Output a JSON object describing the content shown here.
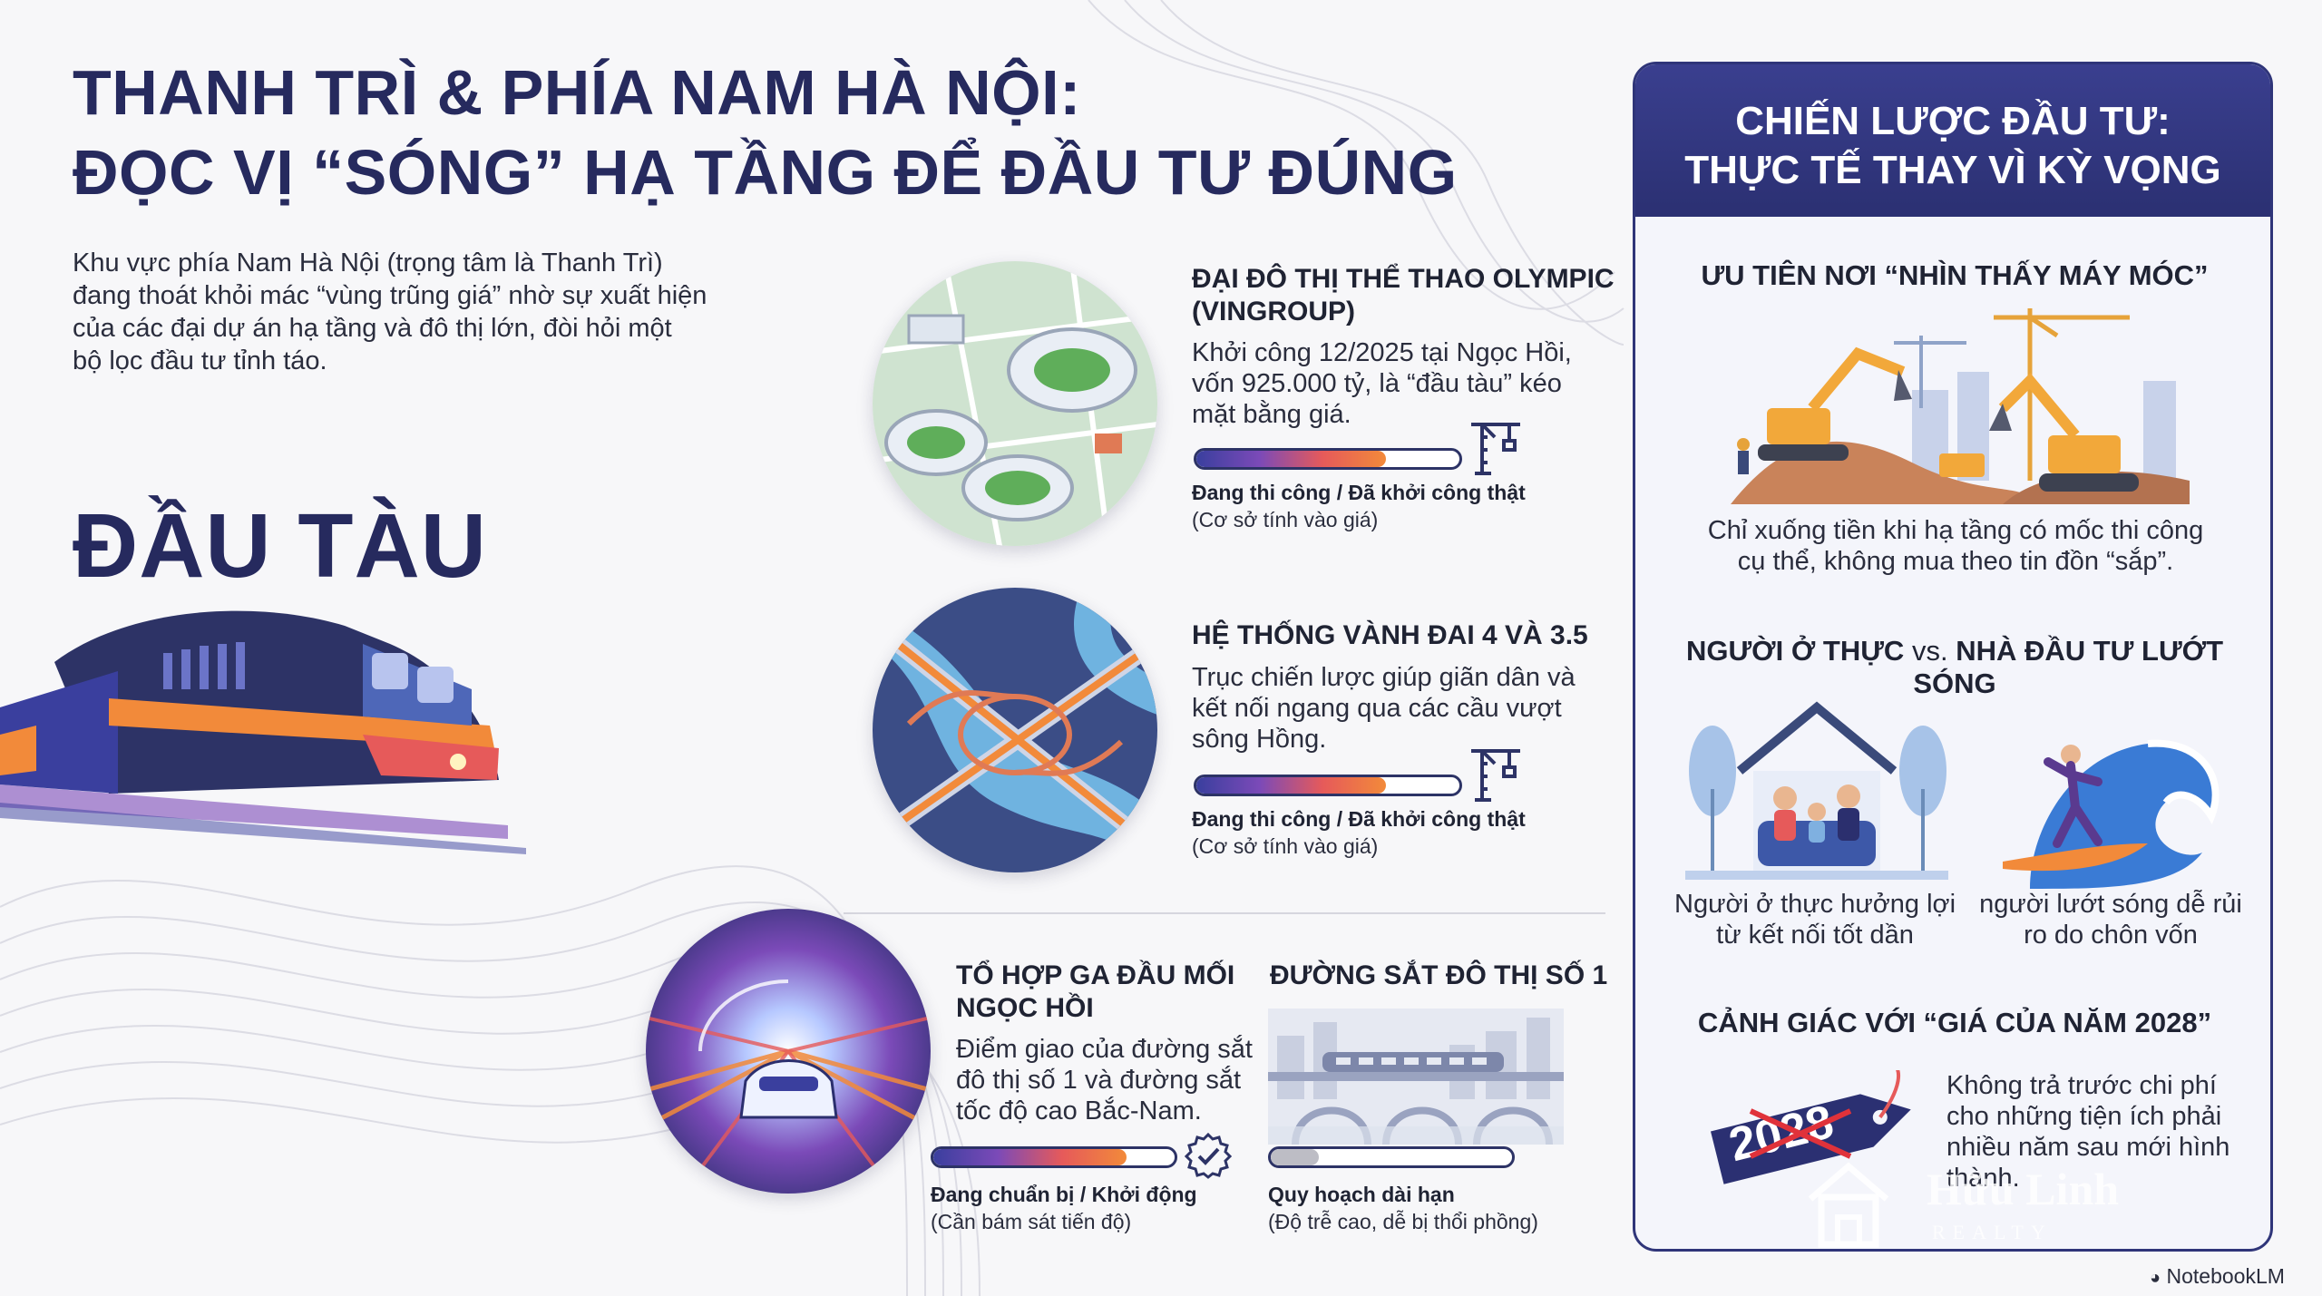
{
  "header": {
    "title_line1": "THANH TRÌ & PHÍA NAM HÀ NỘI:",
    "title_line2": "ĐỌC VỊ “SÓNG” HẠ TẦNG ĐỂ ĐẦU TƯ ĐÚNG"
  },
  "intro": "Khu vực phía Nam Hà Nội (trọng tâm là Thanh Trì) đang thoát khỏi mác “vùng trũng giá” nhờ sự xuất hiện của các đại dự án hạ tầng và đô thị lớn, đòi hỏi một bộ lọc đầu tư tỉnh táo.",
  "dau_tau_label": "ĐẦU TÀU",
  "projects": [
    {
      "title": "ĐẠI ĐÔ THỊ THỂ THAO OLYMPIC (VINGROUP)",
      "desc": "Khởi công 12/2025 tại Ngọc Hồi, vốn 925.000 tỷ, là “đầu tàu” kéo mặt bằng giá.",
      "progress": 0.72,
      "status": "Đang thi công / Đã khởi công thật",
      "status_note": "(Cơ sở tính vào giá)",
      "icon": "crane-icon"
    },
    {
      "title": "HỆ THỐNG VÀNH ĐAI 4 VÀ 3.5",
      "desc": "Trục chiến lược giúp giãn dân và kết nối ngang qua các cầu vượt sông Hồng.",
      "progress": 0.72,
      "status": "Đang thi công / Đã khởi công thật",
      "status_note": "(Cơ sở tính vào giá)",
      "icon": "crane-icon"
    },
    {
      "title": "TỔ HỢP GA ĐẦU MỐI NGỌC HỒI",
      "desc": "Điểm giao của đường sắt đô thị số 1 và đường sắt tốc độ cao Bắc-Nam.",
      "progress": 0.8,
      "status": "Đang chuẩn bị / Khởi động",
      "status_note": "(Cần bám sát tiến độ)",
      "icon": "checkmark-badge-icon"
    },
    {
      "title": "ĐƯỜNG SẮT ĐÔ THỊ SỐ 1",
      "desc": "",
      "progress": 0.2,
      "status": "Quy hoạch dài hạn",
      "status_note": "(Độ trễ cao, dễ bị thổi phồng)",
      "icon": ""
    }
  ],
  "panel": {
    "title_line1": "CHIẾN LƯỢC ĐẦU TƯ:",
    "title_line2": "THỰC TẾ THAY VÌ KỲ VỌNG",
    "s1_title": "ƯU TIÊN NƠI “NHÌN THẤY MÁY MÓC”",
    "s1_text": "Chỉ xuống tiền khi hạ tầng có mốc thi công cụ thể, không mua theo tin đồn “sắp”.",
    "s2_title_a": "NGƯỜI Ở THỰC",
    "s2_title_vs": "vs.",
    "s2_title_b": "NHÀ ĐẦU TƯ LƯỚT SÓNG",
    "s2_left": "Người ở thực hưởng lợi từ kết nối tốt dần",
    "s2_right": "người lướt sóng dễ rủi ro do chôn vốn",
    "s3_title": "CẢNH GIÁC VỚI “GIÁ CỦA NĂM 2028”",
    "s3_text": "Không trả trước chi phí cho những tiện ích phải nhiều năm sau mới hình thành.",
    "tag_year": "2028"
  },
  "watermark": {
    "name": "Hữu Linh",
    "sub": "REALTY"
  },
  "footer": {
    "brand": "NotebookLM"
  },
  "colors": {
    "navy": "#262a5e",
    "accent_orange": "#f28a3a",
    "accent_purple": "#7b4ab8"
  }
}
